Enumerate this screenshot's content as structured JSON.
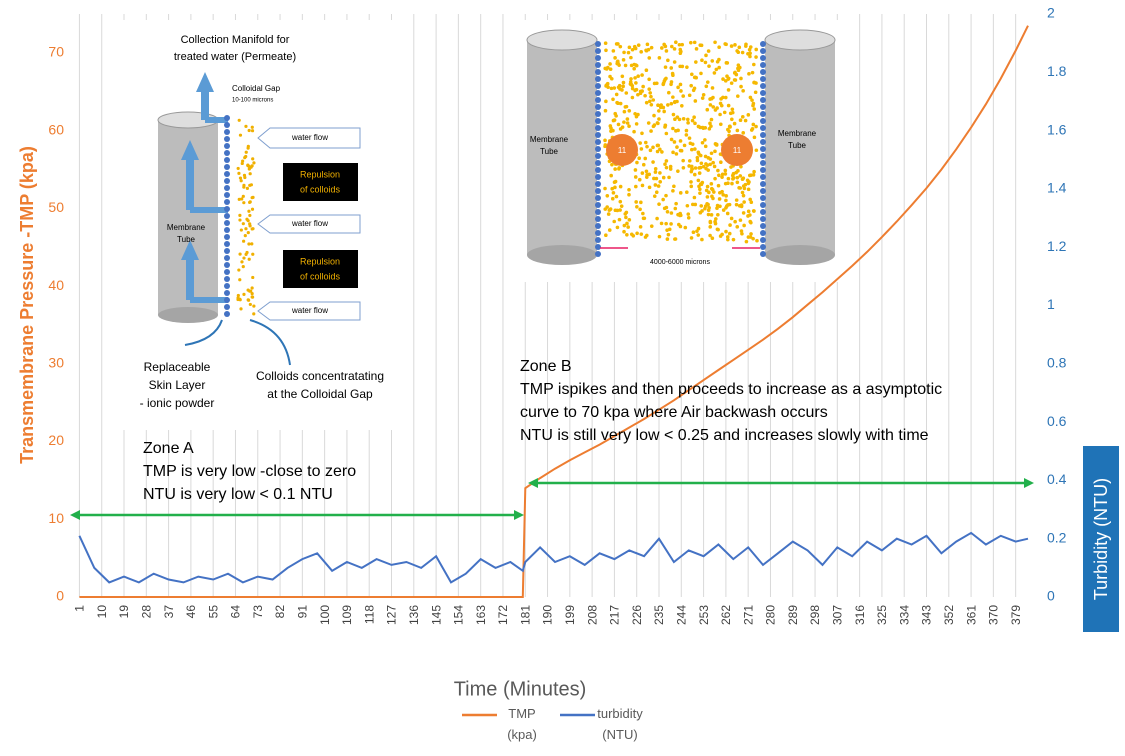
{
  "chart_data": {
    "type": "line",
    "x_label": "Time (Minutes)",
    "y_label": "Transmembrane Pressure -TMP (kpa)",
    "y2_label": "Turbidity (NTU)",
    "x": [
      1,
      7,
      13,
      19,
      25,
      31,
      37,
      43,
      49,
      55,
      61,
      67,
      73,
      79,
      85,
      91,
      97,
      103,
      109,
      115,
      121,
      127,
      133,
      139,
      145,
      151,
      157,
      163,
      169,
      175,
      180,
      181,
      187,
      193,
      199,
      205,
      211,
      217,
      223,
      229,
      235,
      241,
      247,
      253,
      259,
      265,
      271,
      277,
      283,
      289,
      295,
      301,
      307,
      313,
      319,
      325,
      331,
      337,
      343,
      349,
      355,
      361,
      367,
      373,
      379,
      384
    ],
    "xlim": [
      -2,
      386
    ],
    "xticks": [
      1,
      10,
      19,
      28,
      37,
      46,
      55,
      64,
      73,
      82,
      91,
      100,
      109,
      118,
      127,
      136,
      145,
      154,
      163,
      172,
      181,
      190,
      199,
      208,
      217,
      226,
      235,
      244,
      253,
      262,
      271,
      280,
      289,
      298,
      307,
      316,
      325,
      334,
      343,
      352,
      361,
      370,
      379
    ],
    "ylim": [
      0,
      75
    ],
    "yticks": [
      0,
      10,
      20,
      30,
      40,
      50,
      60,
      70
    ],
    "y2lim": [
      0,
      2
    ],
    "y2ticks": [
      0,
      0.2,
      0.4,
      0.6,
      0.8,
      1,
      1.2,
      1.4,
      1.6,
      1.8,
      2
    ],
    "grid": true,
    "legend": "bottom",
    "series": [
      {
        "name": "TMP (kpa)",
        "color": "#ed7d31",
        "values": [
          0,
          0,
          0,
          0,
          0,
          0,
          0,
          0,
          0,
          0,
          0,
          0,
          0,
          0,
          0,
          0,
          0,
          0,
          0,
          0,
          0,
          0,
          0,
          0,
          0,
          0,
          0,
          0,
          0,
          0,
          0,
          14,
          15.3,
          16.5,
          17.6,
          18.6,
          19.6,
          20.7,
          21.8,
          22.9,
          24.1,
          25.3,
          26.6,
          27.9,
          29.2,
          30.5,
          31.8,
          33.1,
          34.5,
          36,
          37.6,
          39.2,
          40.9,
          42.6,
          44.4,
          46.3,
          48.3,
          50.4,
          52.6,
          55,
          57.6,
          60.4,
          63.4,
          66.7,
          70.3,
          73.5
        ]
      },
      {
        "name": "turbidity (NTU)",
        "color": "#4472c4",
        "axis": "y2",
        "values": [
          0.21,
          0.1,
          0.05,
          0.07,
          0.05,
          0.08,
          0.06,
          0.05,
          0.07,
          0.06,
          0.08,
          0.05,
          0.07,
          0.06,
          0.1,
          0.13,
          0.15,
          0.09,
          0.12,
          0.1,
          0.13,
          0.11,
          0.12,
          0.1,
          0.14,
          0.05,
          0.08,
          0.13,
          0.1,
          0.12,
          0.09,
          0.12,
          0.17,
          0.12,
          0.14,
          0.11,
          0.15,
          0.13,
          0.16,
          0.14,
          0.2,
          0.12,
          0.16,
          0.14,
          0.18,
          0.13,
          0.17,
          0.11,
          0.15,
          0.19,
          0.16,
          0.11,
          0.17,
          0.14,
          0.19,
          0.16,
          0.2,
          0.18,
          0.21,
          0.15,
          0.19,
          0.22,
          0.18,
          0.21,
          0.19,
          0.2
        ]
      }
    ],
    "annotations": [
      {
        "lines": [
          "Zone A",
          "TMP is very low -close to zero",
          "NTU is very low < 0.1 NTU"
        ]
      },
      {
        "lines": [
          "Zone B",
          "TMP ispikes and then proceeds to increase as a asymptotic",
          "curve to 70 kpa where Air backwash occurs",
          "NTU is still very low < 0.25 and increases slowly with time"
        ]
      }
    ]
  },
  "left_diagram": {
    "manifold": [
      "Collection Manifold for",
      "treated water (Permeate)"
    ],
    "gap": [
      "Colloidal Gap",
      "10-100 microns"
    ],
    "flow": [
      "water flow",
      "water flow",
      "water flow"
    ],
    "repulsion": [
      "Repulsion",
      "of colloids",
      "Repulsion",
      "of colloids"
    ],
    "tube": [
      "Membrane",
      "Tube"
    ],
    "skin": [
      "Replaceable",
      "Skin Layer",
      "- ionic powder"
    ],
    "colloids": [
      "Colloids concentratating",
      "at the Colloidal Gap"
    ]
  },
  "right_diagram": {
    "tube_left": [
      "Membrane",
      "Tube"
    ],
    "tube_right": [
      "Membrane",
      "Tube"
    ],
    "charge": [
      "11",
      "11"
    ],
    "gap": "4000-6000 microns"
  }
}
